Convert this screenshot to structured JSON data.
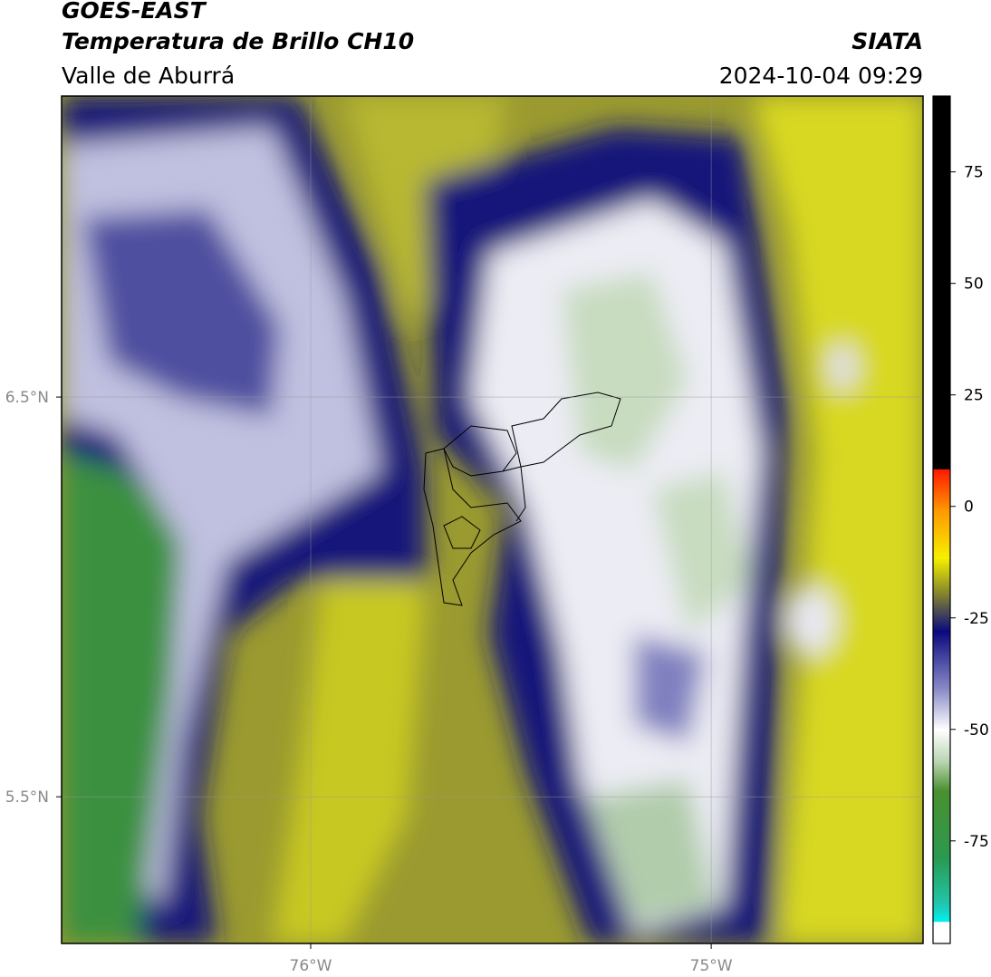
{
  "header": {
    "source": "GOES-EAST",
    "product": "Temperatura de Brillo CH10",
    "region": "Valle de Aburrá",
    "agency": "SIATA",
    "datetime": "2024-10-04 09:29"
  },
  "map": {
    "xlim": [
      -76.622,
      -74.471
    ],
    "ylim": [
      5.133,
      7.253
    ],
    "xticks": [
      {
        "value": -76,
        "label": "76°W"
      },
      {
        "value": -75,
        "label": "75°W"
      }
    ],
    "yticks": [
      {
        "value": 6.5,
        "label": "6.5°N"
      },
      {
        "value": 5.5,
        "label": "5.5°N"
      }
    ]
  },
  "colorbar": {
    "lim": [
      -98,
      92
    ],
    "ticks": [
      75,
      50,
      25,
      0,
      -25,
      -50,
      -75
    ]
  }
}
